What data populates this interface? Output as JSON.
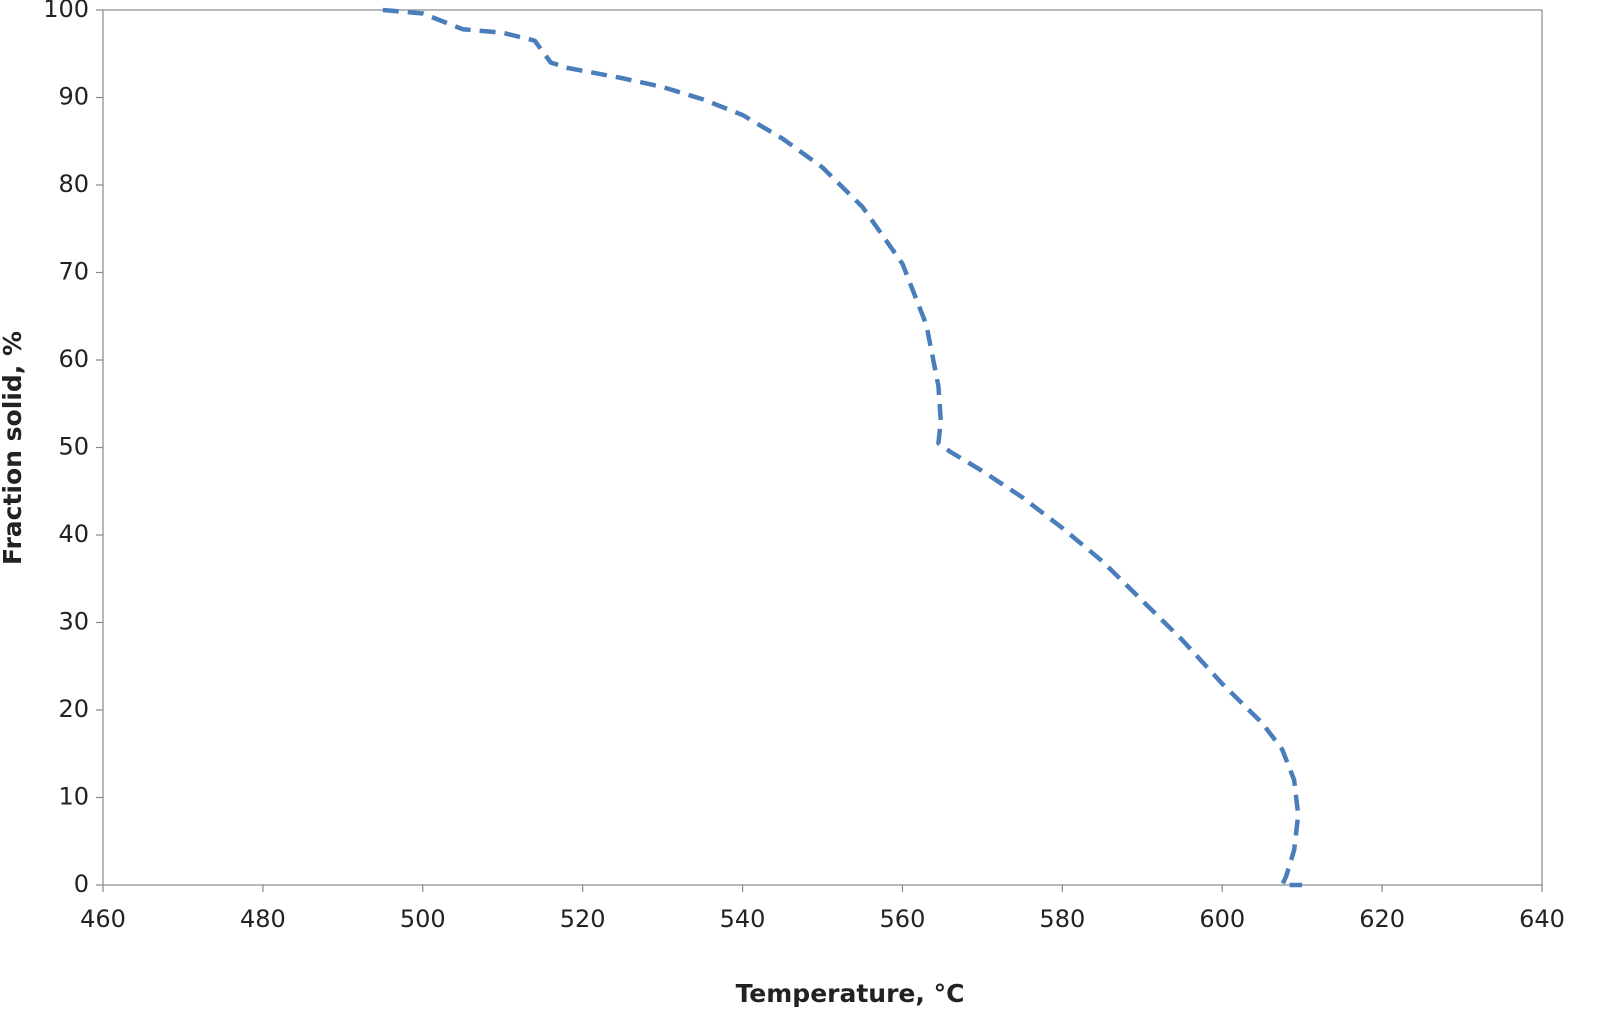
{
  "chart_data": {
    "type": "line",
    "x_label": "Temperature, °C",
    "y_label": "Fraction solid, %",
    "x": [
      495,
      500,
      505,
      510,
      514,
      516,
      518,
      525,
      530,
      535,
      540,
      545,
      550,
      555,
      560,
      563,
      564.5,
      564.8,
      564.5,
      566,
      570,
      575,
      580,
      585,
      590,
      595,
      600,
      605,
      607.5,
      609,
      609.5,
      609,
      608,
      607.5,
      610
    ],
    "values": [
      100,
      99.6,
      97.8,
      97.4,
      96.5,
      94,
      93.4,
      92.2,
      91.2,
      89.8,
      88,
      85.3,
      82,
      77.5,
      71,
      64,
      57,
      53,
      50.5,
      49.5,
      47.3,
      44.3,
      40.8,
      37,
      32.5,
      28,
      23,
      18.5,
      15.5,
      12,
      8,
      4,
      1,
      0,
      0
    ],
    "color": "#4a7ebb",
    "dashed": true,
    "xlim": [
      460,
      640
    ],
    "xticks": [
      460,
      480,
      500,
      520,
      540,
      560,
      580,
      600,
      620,
      640
    ],
    "ylim": [
      0,
      100
    ],
    "yticks": [
      0,
      10,
      20,
      30,
      40,
      50,
      60,
      70,
      80,
      90,
      100
    ],
    "grid": false
  }
}
